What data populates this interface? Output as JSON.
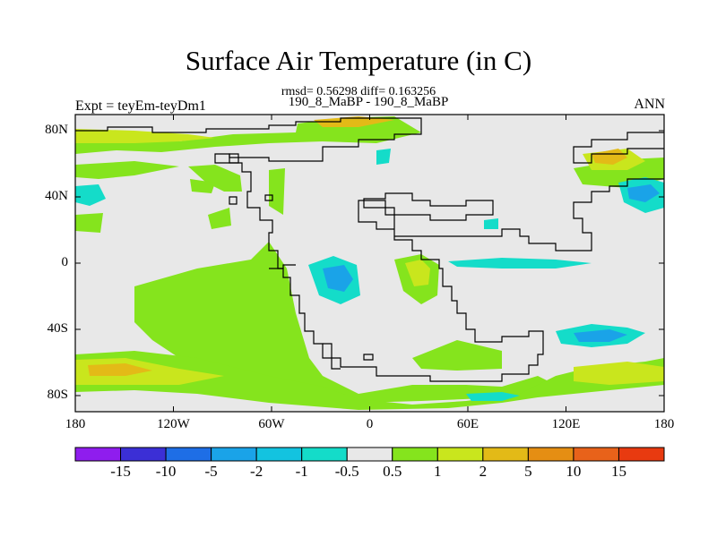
{
  "title": "Surface Air Temperature (in C)",
  "subtitle": "rmsd= 0.56298 diff= 0.163256",
  "left_label": "Expt = teyEm-teyDm1",
  "center_label": "190_8_MaBP - 190_8_MaBP",
  "right_label": "ANN",
  "lat_ticks": [
    "80N",
    "40N",
    "0",
    "40S",
    "80S"
  ],
  "lon_ticks": [
    "180",
    "120W",
    "60W",
    "0",
    "60E",
    "120E",
    "180"
  ],
  "colorbar": {
    "labels": [
      "-15",
      "-10",
      "-5",
      "-2",
      "-1",
      "-0.5",
      "0.5",
      "1",
      "2",
      "5",
      "10",
      "15"
    ],
    "colors": [
      "#8f1dee",
      "#3b2fd6",
      "#1e6ee6",
      "#1aa3e8",
      "#13c3e0",
      "#14dcc9",
      "#e8e8e8",
      "#85e41d",
      "#c9e61d",
      "#e3ba17",
      "#e58e13",
      "#e8621a",
      "#e83a10"
    ]
  },
  "colors": {
    "land_neutral": "#e8e8e8",
    "warm_light": "#85e41d",
    "warm_mid": "#c9e61d",
    "warm_strong": "#e3ba17",
    "cool_light": "#14dcc9",
    "cool_mid": "#13c3e0",
    "cool_strong": "#1aa3e8"
  }
}
